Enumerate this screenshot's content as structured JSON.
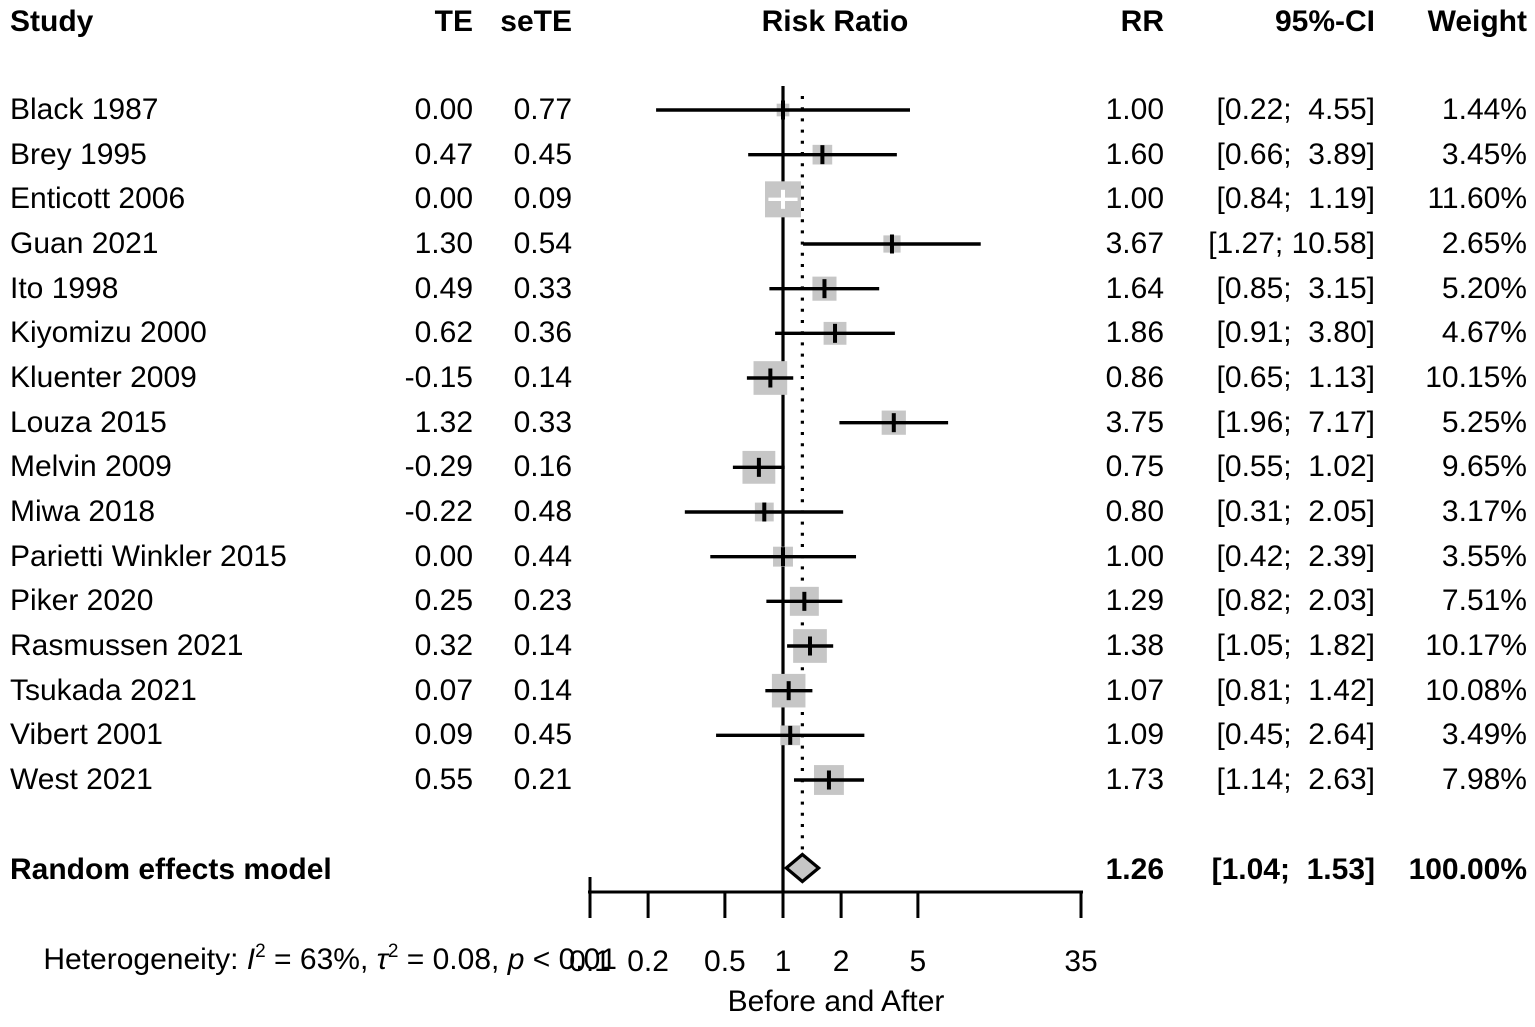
{
  "header": {
    "study": "Study",
    "te": "TE",
    "sete": "seTE",
    "risk_ratio": "Risk Ratio",
    "rr": "RR",
    "ci": "95%-CI",
    "weight": "Weight"
  },
  "heterogeneity_line": {
    "prefix": "Heterogeneity: ",
    "i_sym": "I",
    "i_sup": "2",
    "seg1": " = 63%, ",
    "tau_sym": "τ",
    "tau_sup": "2",
    "seg2": " = 0.08, ",
    "p_sym": "p",
    "seg3": " < 0.01"
  },
  "colors": {
    "square": "#c6c6c6",
    "diamond_fill": "#c6c6c6",
    "line": "#000000",
    "text": "#000000"
  },
  "chart_data": {
    "type": "scatter",
    "subtype": "forest-plot",
    "plot_title": "Risk Ratio",
    "xlabel": "Before and After",
    "x_scale": "log",
    "x_ticks": [
      0.1,
      0.2,
      0.5,
      1,
      2,
      5,
      35
    ],
    "x_tick_labels": [
      "0.1",
      "0.2",
      "0.5",
      "1",
      "2",
      "5",
      "35"
    ],
    "x_range": [
      0.1,
      35
    ],
    "ref_line_x": 1.0,
    "pooled_line_x": 1.26,
    "studies": [
      {
        "name": "Black 1987",
        "te": "0.00",
        "sete": "0.77",
        "rr": 1.0,
        "ci_low": 0.22,
        "ci_high": 4.55,
        "rr_text": "1.00",
        "ci_text": "[0.22;  4.55]",
        "weight_pct": 1.44,
        "weight_text": "1.44%"
      },
      {
        "name": "Brey 1995",
        "te": "0.47",
        "sete": "0.45",
        "rr": 1.6,
        "ci_low": 0.66,
        "ci_high": 3.89,
        "rr_text": "1.60",
        "ci_text": "[0.66;  3.89]",
        "weight_pct": 3.45,
        "weight_text": "3.45%"
      },
      {
        "name": "Enticott 2006",
        "te": "0.00",
        "sete": "0.09",
        "rr": 1.0,
        "ci_low": 0.84,
        "ci_high": 1.19,
        "rr_text": "1.00",
        "ci_text": "[0.84;  1.19]",
        "weight_pct": 11.6,
        "weight_text": "11.60%"
      },
      {
        "name": "Guan 2021",
        "te": "1.30",
        "sete": "0.54",
        "rr": 3.67,
        "ci_low": 1.27,
        "ci_high": 10.58,
        "rr_text": "3.67",
        "ci_text": "[1.27; 10.58]",
        "weight_pct": 2.65,
        "weight_text": "2.65%"
      },
      {
        "name": "Ito 1998",
        "te": "0.49",
        "sete": "0.33",
        "rr": 1.64,
        "ci_low": 0.85,
        "ci_high": 3.15,
        "rr_text": "1.64",
        "ci_text": "[0.85;  3.15]",
        "weight_pct": 5.2,
        "weight_text": "5.20%"
      },
      {
        "name": "Kiyomizu 2000",
        "te": "0.62",
        "sete": "0.36",
        "rr": 1.86,
        "ci_low": 0.91,
        "ci_high": 3.8,
        "rr_text": "1.86",
        "ci_text": "[0.91;  3.80]",
        "weight_pct": 4.67,
        "weight_text": "4.67%"
      },
      {
        "name": "Kluenter 2009",
        "te": "-0.15",
        "sete": "0.14",
        "rr": 0.86,
        "ci_low": 0.65,
        "ci_high": 1.13,
        "rr_text": "0.86",
        "ci_text": "[0.65;  1.13]",
        "weight_pct": 10.15,
        "weight_text": "10.15%"
      },
      {
        "name": "Louza 2015",
        "te": "1.32",
        "sete": "0.33",
        "rr": 3.75,
        "ci_low": 1.96,
        "ci_high": 7.17,
        "rr_text": "3.75",
        "ci_text": "[1.96;  7.17]",
        "weight_pct": 5.25,
        "weight_text": "5.25%"
      },
      {
        "name": "Melvin 2009",
        "te": "-0.29",
        "sete": "0.16",
        "rr": 0.75,
        "ci_low": 0.55,
        "ci_high": 1.02,
        "rr_text": "0.75",
        "ci_text": "[0.55;  1.02]",
        "weight_pct": 9.65,
        "weight_text": "9.65%"
      },
      {
        "name": "Miwa 2018",
        "te": "-0.22",
        "sete": "0.48",
        "rr": 0.8,
        "ci_low": 0.31,
        "ci_high": 2.05,
        "rr_text": "0.80",
        "ci_text": "[0.31;  2.05]",
        "weight_pct": 3.17,
        "weight_text": "3.17%"
      },
      {
        "name": "Parietti Winkler 2015",
        "te": "0.00",
        "sete": "0.44",
        "rr": 1.0,
        "ci_low": 0.42,
        "ci_high": 2.39,
        "rr_text": "1.00",
        "ci_text": "[0.42;  2.39]",
        "weight_pct": 3.55,
        "weight_text": "3.55%"
      },
      {
        "name": "Piker 2020",
        "te": "0.25",
        "sete": "0.23",
        "rr": 1.29,
        "ci_low": 0.82,
        "ci_high": 2.03,
        "rr_text": "1.29",
        "ci_text": "[0.82;  2.03]",
        "weight_pct": 7.51,
        "weight_text": "7.51%"
      },
      {
        "name": "Rasmussen 2021",
        "te": "0.32",
        "sete": "0.14",
        "rr": 1.38,
        "ci_low": 1.05,
        "ci_high": 1.82,
        "rr_text": "1.38",
        "ci_text": "[1.05;  1.82]",
        "weight_pct": 10.17,
        "weight_text": "10.17%"
      },
      {
        "name": "Tsukada 2021",
        "te": "0.07",
        "sete": "0.14",
        "rr": 1.07,
        "ci_low": 0.81,
        "ci_high": 1.42,
        "rr_text": "1.07",
        "ci_text": "[0.81;  1.42]",
        "weight_pct": 10.08,
        "weight_text": "10.08%"
      },
      {
        "name": "Vibert 2001",
        "te": "0.09",
        "sete": "0.45",
        "rr": 1.09,
        "ci_low": 0.45,
        "ci_high": 2.64,
        "rr_text": "1.09",
        "ci_text": "[0.45;  2.64]",
        "weight_pct": 3.49,
        "weight_text": "3.49%"
      },
      {
        "name": "West 2021",
        "te": "0.55",
        "sete": "0.21",
        "rr": 1.73,
        "ci_low": 1.14,
        "ci_high": 2.63,
        "rr_text": "1.73",
        "ci_text": "[1.14;  2.63]",
        "weight_pct": 7.98,
        "weight_text": "7.98%"
      }
    ],
    "summary": {
      "label": "Random effects model",
      "rr": 1.26,
      "ci_low": 1.04,
      "ci_high": 1.53,
      "rr_text": "1.26",
      "ci_text": "[1.04;  1.53]",
      "weight_pct": 100.0,
      "weight_text": "100.00%"
    },
    "heterogeneity": {
      "I2": "63%",
      "tau2": "0.08",
      "p": "< 0.01"
    }
  }
}
